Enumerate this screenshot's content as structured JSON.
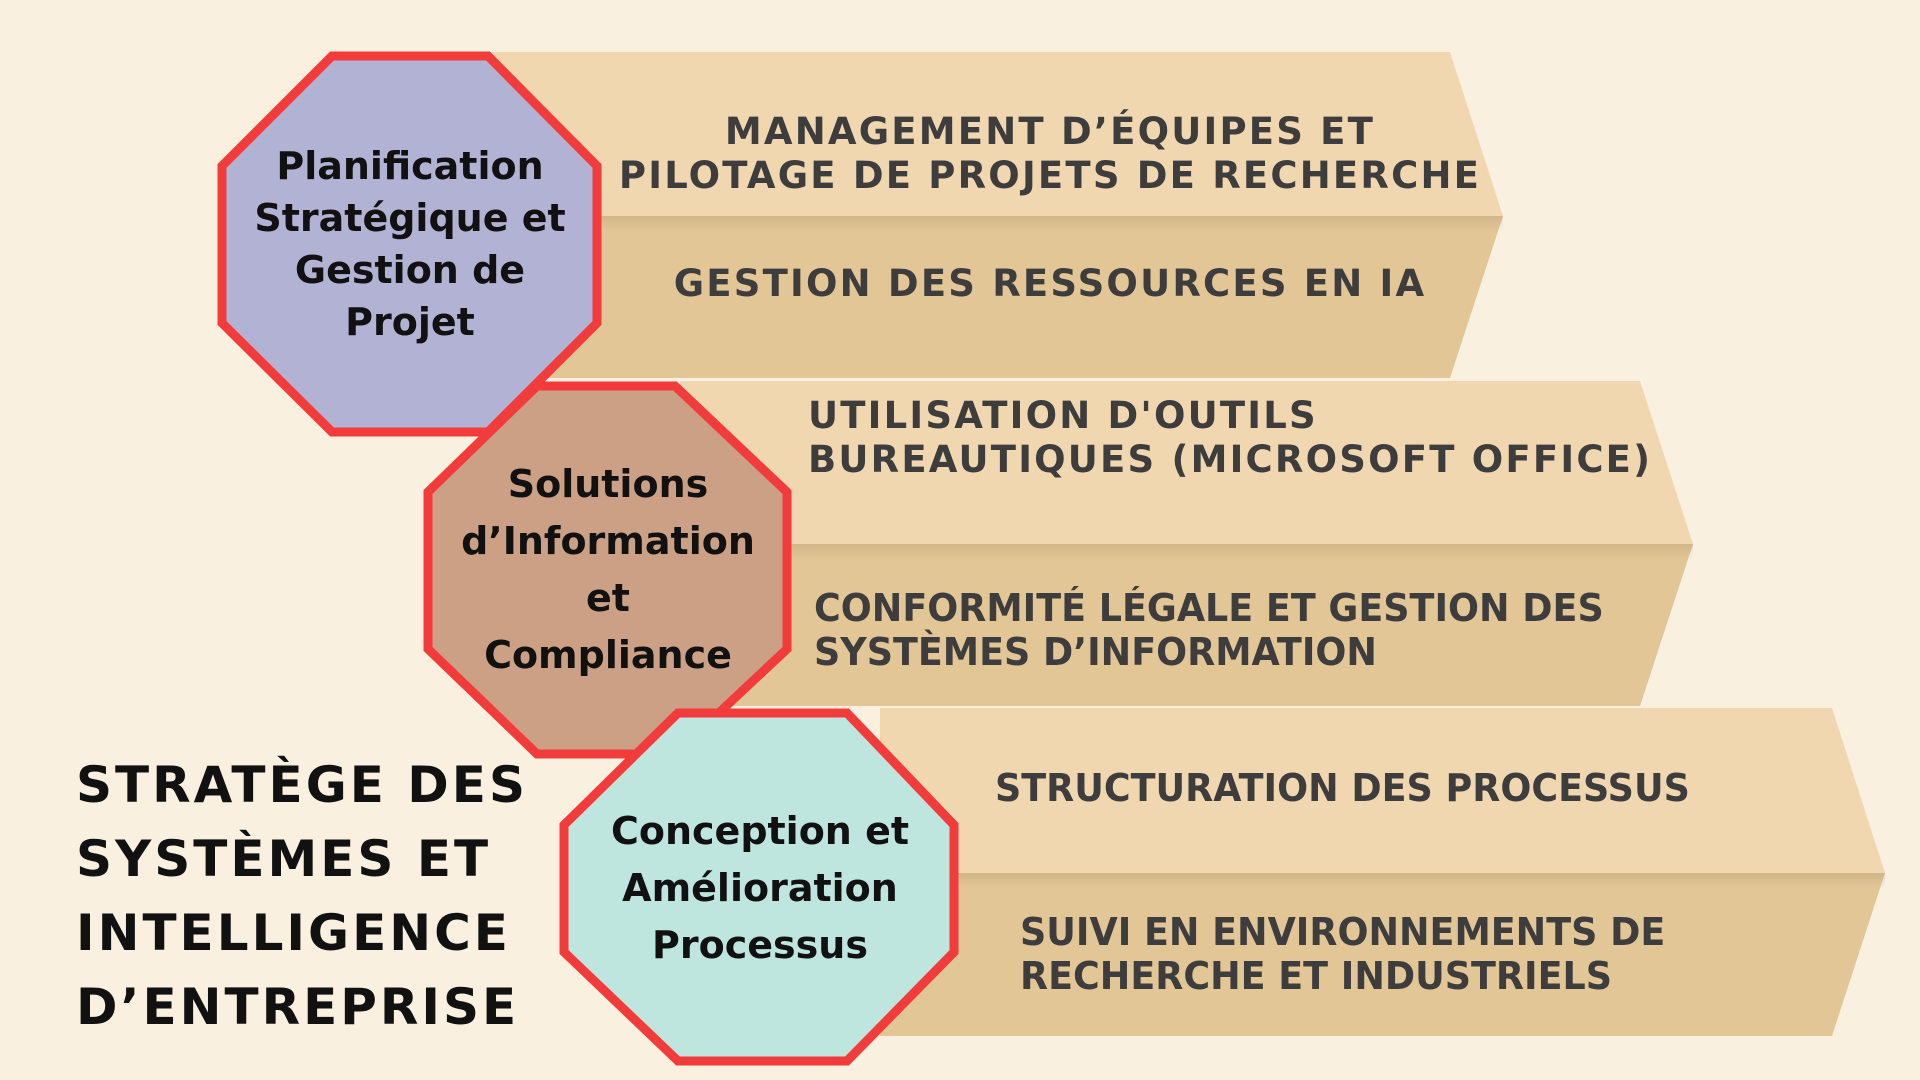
{
  "title": "STRATÈGE DES\nSYSTÈMES ET\nINTELLIGENCE\nD’ENTREPRISE",
  "colors": {
    "background": "#f9f0e0",
    "octagon_border": "#f23b3b",
    "band_light": "#f0d7b0",
    "band_dark": "#e3c696",
    "oct1_fill": "#b2b2d4",
    "oct2_fill": "#cba084",
    "oct3_fill": "#bfe6de"
  },
  "groups": [
    {
      "label": "Planification\nStratégique et\nGestion de\nProjet",
      "items": [
        "MANAGEMENT D’ÉQUIPES ET\nPILOTAGE DE PROJETS DE RECHERCHE",
        "GESTION DES RESSOURCES EN IA"
      ]
    },
    {
      "label": "Solutions\nd’Information\net\nCompliance",
      "items": [
        "UTILISATION D'OUTILS\nBUREAUTIQUES (MICROSOFT OFFICE)",
        "CONFORMITÉ LÉGALE ET GESTION DES\nSYSTÈMES D’INFORMATION"
      ]
    },
    {
      "label": "Conception et\nAmélioration\nProcessus",
      "items": [
        "STRUCTURATION DES PROCESSUS",
        "SUIVI EN ENVIRONNEMENTS DE\nRECHERCHE ET INDUSTRIELS"
      ]
    }
  ]
}
